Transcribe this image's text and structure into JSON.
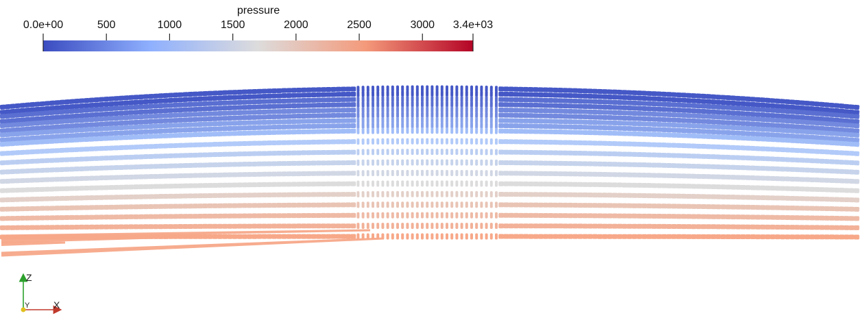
{
  "colorbar": {
    "title": "pressure",
    "min": 0,
    "max": 3400,
    "min_label": "0.0e+00",
    "max_label": "3.4e+03",
    "ticks": [
      {
        "value": 500,
        "label": "500"
      },
      {
        "value": 1000,
        "label": "1000"
      },
      {
        "value": 1500,
        "label": "1500"
      },
      {
        "value": 2000,
        "label": "2000"
      },
      {
        "value": 2500,
        "label": "2500"
      },
      {
        "value": 3000,
        "label": "3000"
      }
    ],
    "colormap": [
      "#3b4cc0",
      "#aac7fd",
      "#dddcdc",
      "#f7a889",
      "#b40426"
    ]
  },
  "axes_triad": {
    "z_label": "Z",
    "y_label": "Y",
    "x_label": "X",
    "z_color": "#2ca02c",
    "x_color": "#c0392b",
    "y_color": "#e0c020"
  },
  "particle_layers": [
    {
      "pressure": 80
    },
    {
      "pressure": 240
    },
    {
      "pressure": 420
    },
    {
      "pressure": 600
    },
    {
      "pressure": 780
    },
    {
      "pressure": 960
    },
    {
      "pressure": 1140
    },
    {
      "pressure": 1320
    },
    {
      "pressure": 1500
    },
    {
      "pressure": 1700
    },
    {
      "pressure": 1900
    },
    {
      "pressure": 2100
    },
    {
      "pressure": 2250
    },
    {
      "pressure": 2400
    },
    {
      "pressure": 2550
    }
  ]
}
